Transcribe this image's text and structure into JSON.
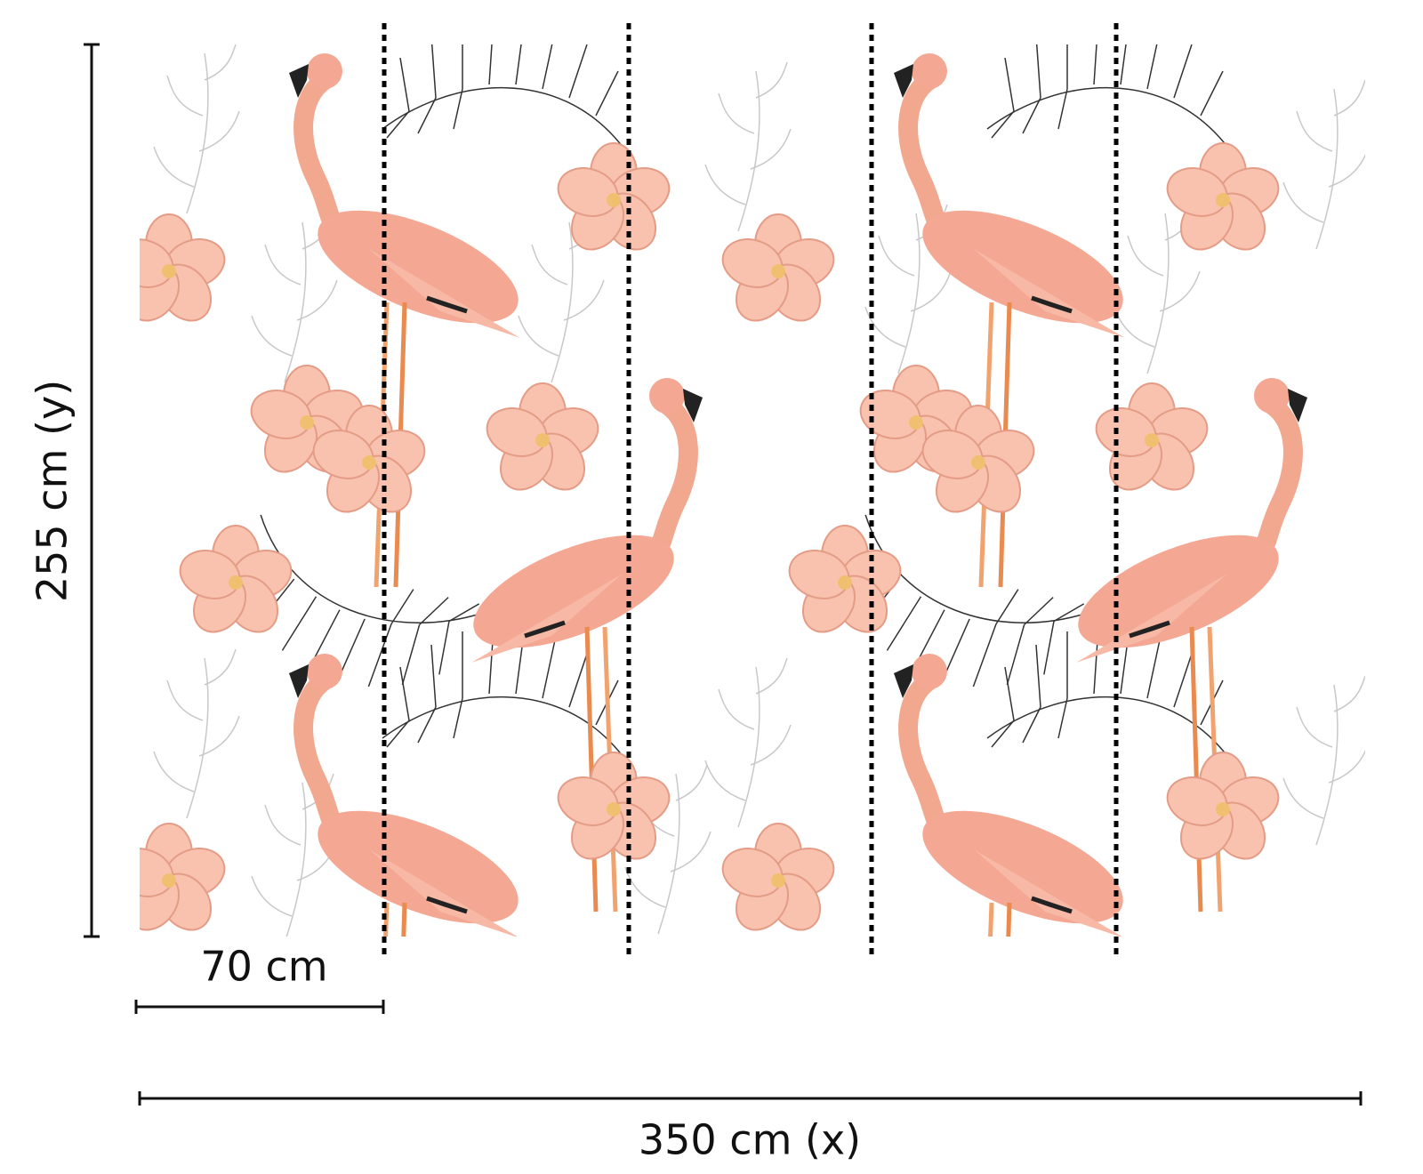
{
  "dimensions": {
    "height": "255 cm (y)",
    "panel_width": "70 cm",
    "total_width": "350 cm (x)"
  }
}
